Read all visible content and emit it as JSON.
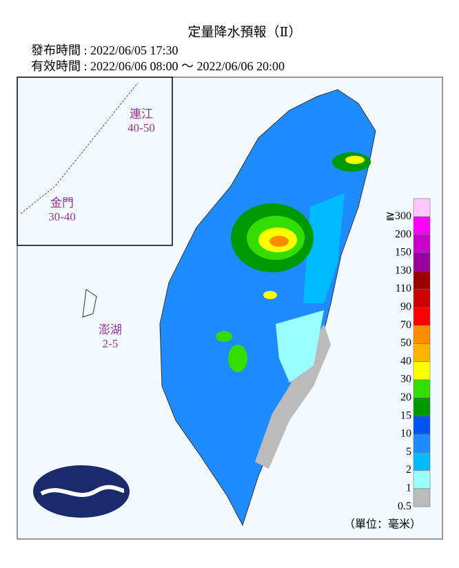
{
  "header": {
    "title": "定量降水預報（Ⅱ）",
    "issued": "發布時間 : 2022/06/05 17:30",
    "valid": "有效時間 : 2022/06/06 08:00 ～ 2022/06/06 20:00"
  },
  "islands": [
    {
      "name": "連江",
      "range": "40-50"
    },
    {
      "name": "金門",
      "range": "30-40"
    },
    {
      "name": "澎湖",
      "range": "2-5"
    }
  ],
  "legend": {
    "unit": "（單位：毫米）",
    "items": [
      {
        "label": "≧300",
        "color": "#ffc6ff"
      },
      {
        "label": "200",
        "color": "#ff00ff"
      },
      {
        "label": "150",
        "color": "#cc00cc"
      },
      {
        "label": "130",
        "color": "#990099"
      },
      {
        "label": "110",
        "color": "#990000"
      },
      {
        "label": "90",
        "color": "#cc0000"
      },
      {
        "label": "70",
        "color": "#ff0000"
      },
      {
        "label": "50",
        "color": "#ff8c00"
      },
      {
        "label": "40",
        "color": "#ffb400"
      },
      {
        "label": "30",
        "color": "#ffff00"
      },
      {
        "label": "20",
        "color": "#33dd00"
      },
      {
        "label": "15",
        "color": "#009900"
      },
      {
        "label": "10",
        "color": "#0055ee"
      },
      {
        "label": "5",
        "color": "#1e8cff"
      },
      {
        "label": "2",
        "color": "#00bbff"
      },
      {
        "label": "1",
        "color": "#99ffff"
      },
      {
        "label": "0.5",
        "color": "#bbbbbb"
      }
    ]
  }
}
